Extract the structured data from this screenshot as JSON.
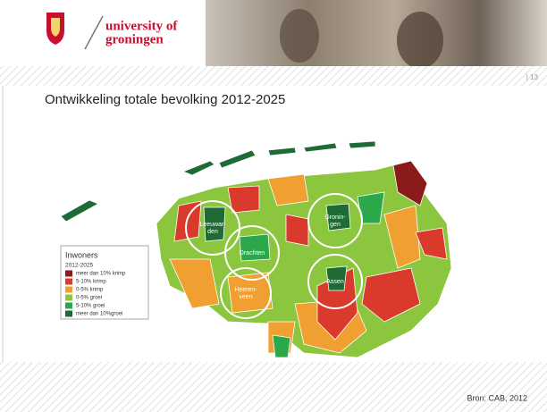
{
  "header": {
    "logo_line1": "university of",
    "logo_line2": "groningen",
    "page_number": "| 13"
  },
  "title": "Ontwikkeling totale bevolking 2012-2025",
  "map": {
    "legend": {
      "title": "Inwoners",
      "subtitle": "2012-2025",
      "items": [
        "meer dan 10% krimp",
        "5-10% krimp",
        "0-5% krimp",
        "0-5% groei",
        "5-10% groei",
        "meer dan 10%groei"
      ]
    },
    "cities": [
      "Leeuwar-den",
      "Drachten",
      "Gronin-gen",
      "Heeren-veen",
      "Assen"
    ]
  },
  "source": "Bron: CAB, 2012"
}
